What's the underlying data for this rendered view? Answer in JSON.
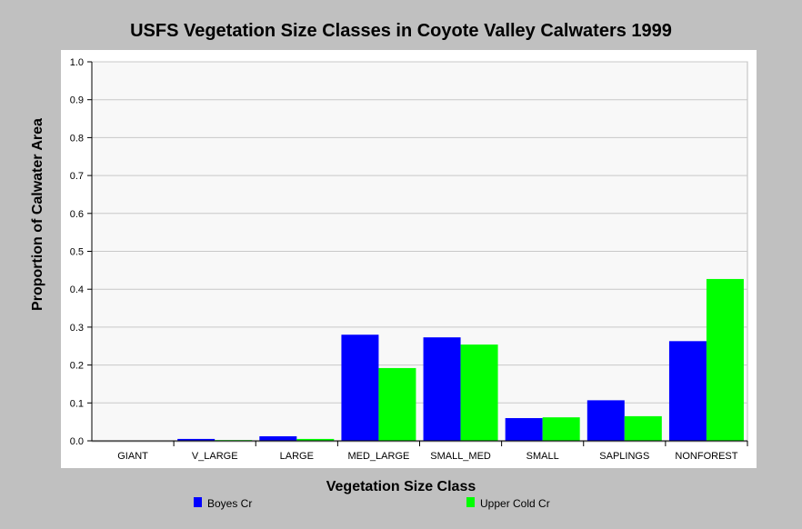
{
  "chart_data": {
    "type": "bar",
    "title": "USFS Vegetation Size Classes in Coyote Valley Calwaters 1999",
    "xlabel": "Vegetation Size Class",
    "ylabel": "Proportion of Calwater Area",
    "ylim": [
      0,
      1.0
    ],
    "yticks": [
      "0.0",
      "0.1",
      "0.2",
      "0.3",
      "0.4",
      "0.5",
      "0.6",
      "0.7",
      "0.8",
      "0.9",
      "1.0"
    ],
    "grid": true,
    "legend_position": "bottom",
    "categories": [
      "GIANT",
      "V_LARGE",
      "LARGE",
      "MED_LARGE",
      "SMALL_MED",
      "SMALL",
      "SAPLINGS",
      "NONFOREST"
    ],
    "series": [
      {
        "name": "Boyes Cr",
        "color": "#0000ff",
        "values": [
          0.0,
          0.005,
          0.012,
          0.28,
          0.273,
          0.06,
          0.107,
          0.263
        ]
      },
      {
        "name": "Upper Cold Cr",
        "color": "#00ff00",
        "values": [
          0.0,
          0.002,
          0.005,
          0.192,
          0.254,
          0.062,
          0.065,
          0.427
        ]
      }
    ]
  }
}
